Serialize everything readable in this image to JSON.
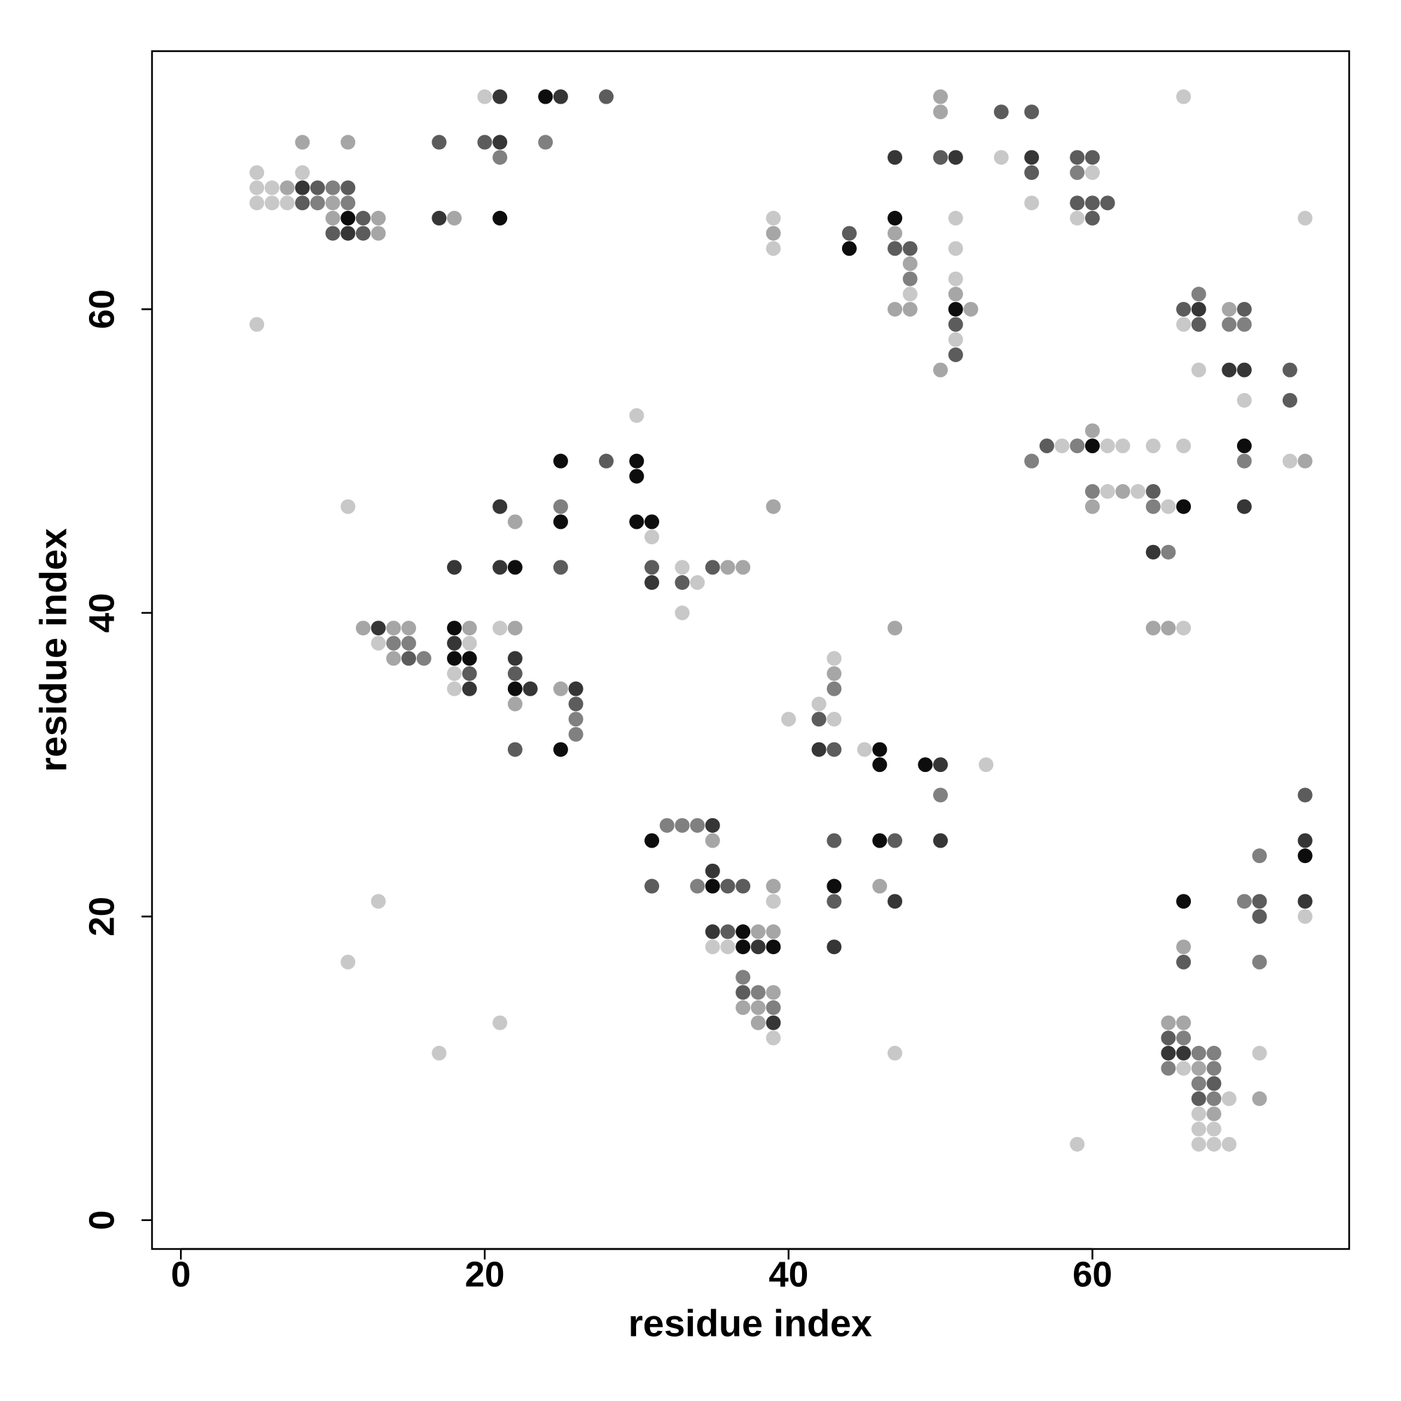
{
  "chart_data": {
    "type": "scatter",
    "xlabel": "residue index",
    "ylabel": "residue index",
    "xlim": [
      -1.9,
      76.9
    ],
    "ylim": [
      -1.9,
      77
    ],
    "xticks": [
      0,
      20,
      40,
      60
    ],
    "yticks": [
      0,
      20,
      40,
      60
    ],
    "x": [
      20,
      21,
      24,
      25,
      28,
      50,
      66,
      54,
      56,
      50,
      8,
      11,
      17,
      20,
      21,
      24,
      21,
      47,
      50,
      51,
      54,
      56,
      59,
      60,
      5,
      8,
      56,
      59,
      60,
      5,
      6,
      7,
      8,
      9,
      10,
      11,
      5,
      6,
      7,
      8,
      9,
      10,
      11,
      56,
      59,
      60,
      61,
      10,
      11,
      12,
      13,
      17,
      18,
      21,
      39,
      47,
      51,
      59,
      60,
      74,
      10,
      11,
      12,
      13,
      39,
      44,
      47,
      39,
      44,
      47,
      48,
      51,
      48,
      48,
      51,
      48,
      51,
      67,
      47,
      48,
      51,
      52,
      66,
      67,
      69,
      70,
      5,
      51,
      66,
      67,
      69,
      70,
      51,
      51,
      50,
      67,
      69,
      70,
      73,
      70,
      73,
      30,
      60,
      57,
      58,
      59,
      60,
      61,
      62,
      64,
      66,
      70,
      25,
      28,
      30,
      56,
      70,
      73,
      74,
      30,
      60,
      61,
      62,
      63,
      64,
      11,
      21,
      25,
      39,
      60,
      64,
      65,
      66,
      70,
      22,
      25,
      30,
      31,
      31,
      64,
      65,
      18,
      21,
      22,
      25,
      31,
      33,
      35,
      36,
      37,
      31,
      33,
      34,
      33,
      12,
      13,
      14,
      15,
      18,
      19,
      21,
      22,
      47,
      64,
      65,
      66,
      13,
      14,
      15,
      18,
      19,
      14,
      15,
      16,
      18,
      19,
      22,
      43,
      18,
      19,
      22,
      43,
      18,
      19,
      22,
      23,
      25,
      26,
      43,
      22,
      26,
      42,
      26,
      40,
      42,
      43,
      26,
      22,
      25,
      42,
      43,
      45,
      46,
      46,
      49,
      50,
      53,
      50,
      74,
      32,
      33,
      34,
      35,
      31,
      35,
      43,
      46,
      47,
      50,
      74,
      71,
      74,
      35,
      31,
      34,
      35,
      36,
      37,
      39,
      43,
      46,
      13,
      39,
      43,
      47,
      66,
      70,
      71,
      74,
      71,
      74,
      35,
      36,
      37,
      38,
      39,
      35,
      36,
      37,
      38,
      39,
      43,
      66,
      11,
      66,
      71,
      37,
      37,
      38,
      39,
      37,
      38,
      39,
      21,
      38,
      39,
      65,
      66,
      39,
      65,
      66,
      17,
      47,
      65,
      66,
      67,
      68,
      71,
      65,
      66,
      67,
      68,
      67,
      68,
      67,
      68,
      69,
      71,
      67,
      68,
      67,
      68,
      59,
      67,
      68,
      69
    ],
    "values": [
      74,
      74,
      74,
      74,
      74,
      74,
      74,
      73,
      73,
      73,
      71,
      71,
      71,
      71,
      71,
      71,
      70,
      70,
      70,
      70,
      70,
      70,
      70,
      70,
      69,
      69,
      69,
      69,
      69,
      68,
      68,
      68,
      68,
      68,
      68,
      68,
      67,
      67,
      67,
      67,
      67,
      67,
      67,
      67,
      67,
      67,
      67,
      66,
      66,
      66,
      66,
      66,
      66,
      66,
      66,
      66,
      66,
      66,
      66,
      66,
      65,
      65,
      65,
      65,
      65,
      65,
      65,
      64,
      64,
      64,
      64,
      64,
      63,
      62,
      62,
      61,
      61,
      61,
      60,
      60,
      60,
      60,
      60,
      60,
      60,
      60,
      59,
      59,
      59,
      59,
      59,
      59,
      58,
      57,
      56,
      56,
      56,
      56,
      56,
      54,
      54,
      53,
      52,
      51,
      51,
      51,
      51,
      51,
      51,
      51,
      51,
      51,
      50,
      50,
      50,
      50,
      50,
      50,
      50,
      49,
      48,
      48,
      48,
      48,
      48,
      47,
      47,
      47,
      47,
      47,
      47,
      47,
      47,
      47,
      46,
      46,
      46,
      46,
      45,
      44,
      44,
      43,
      43,
      43,
      43,
      43,
      43,
      43,
      43,
      43,
      42,
      42,
      42,
      40,
      39,
      39,
      39,
      39,
      39,
      39,
      39,
      39,
      39,
      39,
      39,
      39,
      38,
      38,
      38,
      38,
      38,
      37,
      37,
      37,
      37,
      37,
      37,
      37,
      36,
      36,
      36,
      36,
      35,
      35,
      35,
      35,
      35,
      35,
      35,
      34,
      34,
      34,
      33,
      33,
      33,
      33,
      32,
      31,
      31,
      31,
      31,
      31,
      31,
      30,
      30,
      30,
      30,
      28,
      28,
      26,
      26,
      26,
      26,
      25,
      25,
      25,
      25,
      25,
      25,
      25,
      24,
      24,
      23,
      22,
      22,
      22,
      22,
      22,
      22,
      22,
      22,
      21,
      21,
      21,
      21,
      21,
      21,
      21,
      21,
      20,
      20,
      19,
      19,
      19,
      19,
      19,
      18,
      18,
      18,
      18,
      18,
      18,
      18,
      17,
      17,
      17,
      16,
      15,
      15,
      15,
      14,
      14,
      14,
      13,
      13,
      13,
      13,
      13,
      12,
      12,
      12,
      11,
      11,
      11,
      11,
      11,
      11,
      11,
      10,
      10,
      10,
      10,
      9,
      9,
      8,
      8,
      8,
      8,
      7,
      7,
      6,
      6,
      5,
      5,
      5,
      5
    ],
    "colors": [
      "#c8c8c8",
      "#363636",
      "#0d0d0d",
      "#363636",
      "#5c5c5c",
      "#a6a6a6",
      "#c8c8c8",
      "#5c5c5c",
      "#5c5c5c",
      "#a6a6a6",
      "#a6a6a6",
      "#a6a6a6",
      "#5c5c5c",
      "#5c5c5c",
      "#363636",
      "#808080",
      "#808080",
      "#363636",
      "#5c5c5c",
      "#363636",
      "#c8c8c8",
      "#363636",
      "#5c5c5c",
      "#5c5c5c",
      "#c8c8c8",
      "#c8c8c8",
      "#5c5c5c",
      "#808080",
      "#c8c8c8",
      "#c8c8c8",
      "#c8c8c8",
      "#a6a6a6",
      "#363636",
      "#5c5c5c",
      "#808080",
      "#5c5c5c",
      "#c8c8c8",
      "#c8c8c8",
      "#c8c8c8",
      "#5c5c5c",
      "#808080",
      "#a6a6a6",
      "#808080",
      "#c8c8c8",
      "#5c5c5c",
      "#5c5c5c",
      "#5c5c5c",
      "#a6a6a6",
      "#0d0d0d",
      "#5c5c5c",
      "#a6a6a6",
      "#363636",
      "#a6a6a6",
      "#0d0d0d",
      "#c8c8c8",
      "#0d0d0d",
      "#c8c8c8",
      "#c8c8c8",
      "#5c5c5c",
      "#c8c8c8",
      "#5c5c5c",
      "#363636",
      "#5c5c5c",
      "#a6a6a6",
      "#a6a6a6",
      "#5c5c5c",
      "#a6a6a6",
      "#c8c8c8",
      "#0d0d0d",
      "#5c5c5c",
      "#5c5c5c",
      "#c8c8c8",
      "#a6a6a6",
      "#808080",
      "#c8c8c8",
      "#c8c8c8",
      "#a6a6a6",
      "#808080",
      "#a6a6a6",
      "#a6a6a6",
      "#0d0d0d",
      "#a6a6a6",
      "#5c5c5c",
      "#363636",
      "#a6a6a6",
      "#5c5c5c",
      "#c8c8c8",
      "#5c5c5c",
      "#c8c8c8",
      "#5c5c5c",
      "#808080",
      "#808080",
      "#c8c8c8",
      "#5c5c5c",
      "#a6a6a6",
      "#c8c8c8",
      "#363636",
      "#363636",
      "#5c5c5c",
      "#c8c8c8",
      "#5c5c5c",
      "#c8c8c8",
      "#a6a6a6",
      "#5c5c5c",
      "#c8c8c8",
      "#808080",
      "#0d0d0d",
      "#c8c8c8",
      "#c8c8c8",
      "#c8c8c8",
      "#c8c8c8",
      "#0d0d0d",
      "#0d0d0d",
      "#5c5c5c",
      "#0d0d0d",
      "#808080",
      "#808080",
      "#c8c8c8",
      "#a6a6a6",
      "#0d0d0d",
      "#808080",
      "#c8c8c8",
      "#a6a6a6",
      "#c8c8c8",
      "#5c5c5c",
      "#c8c8c8",
      "#363636",
      "#808080",
      "#a6a6a6",
      "#a6a6a6",
      "#808080",
      "#c8c8c8",
      "#0d0d0d",
      "#363636",
      "#a6a6a6",
      "#0d0d0d",
      "#0d0d0d",
      "#0d0d0d",
      "#c8c8c8",
      "#363636",
      "#808080",
      "#363636",
      "#363636",
      "#0d0d0d",
      "#5c5c5c",
      "#5c5c5c",
      "#c8c8c8",
      "#5c5c5c",
      "#a6a6a6",
      "#a6a6a6",
      "#363636",
      "#5c5c5c",
      "#c8c8c8",
      "#c8c8c8",
      "#a6a6a6",
      "#363636",
      "#a6a6a6",
      "#a6a6a6",
      "#0d0d0d",
      "#a6a6a6",
      "#c8c8c8",
      "#a6a6a6",
      "#a6a6a6",
      "#a6a6a6",
      "#a6a6a6",
      "#c8c8c8",
      "#c8c8c8",
      "#808080",
      "#808080",
      "#363636",
      "#c8c8c8",
      "#a6a6a6",
      "#5c5c5c",
      "#808080",
      "#0d0d0d",
      "#0d0d0d",
      "#363636",
      "#c8c8c8",
      "#c8c8c8",
      "#5c5c5c",
      "#5c5c5c",
      "#a6a6a6",
      "#c8c8c8",
      "#363636",
      "#0d0d0d",
      "#363636",
      "#a6a6a6",
      "#363636",
      "#808080",
      "#a6a6a6",
      "#5c5c5c",
      "#c8c8c8",
      "#808080",
      "#c8c8c8",
      "#5c5c5c",
      "#c8c8c8",
      "#808080",
      "#5c5c5c",
      "#0d0d0d",
      "#363636",
      "#5c5c5c",
      "#c8c8c8",
      "#0d0d0d",
      "#0d0d0d",
      "#0d0d0d",
      "#363636",
      "#c8c8c8",
      "#808080",
      "#5c5c5c",
      "#808080",
      "#808080",
      "#808080",
      "#363636",
      "#0d0d0d",
      "#a6a6a6",
      "#5c5c5c",
      "#0d0d0d",
      "#5c5c5c",
      "#363636",
      "#363636",
      "#808080",
      "#0d0d0d",
      "#363636",
      "#5c5c5c",
      "#808080",
      "#0d0d0d",
      "#5c5c5c",
      "#5c5c5c",
      "#a6a6a6",
      "#0d0d0d",
      "#a6a6a6",
      "#c8c8c8",
      "#c8c8c8",
      "#5c5c5c",
      "#363636",
      "#0d0d0d",
      "#808080",
      "#5c5c5c",
      "#363636",
      "#5c5c5c",
      "#c8c8c8",
      "#363636",
      "#5c5c5c",
      "#0d0d0d",
      "#a6a6a6",
      "#a6a6a6",
      "#c8c8c8",
      "#c8c8c8",
      "#0d0d0d",
      "#363636",
      "#0d0d0d",
      "#363636",
      "#a6a6a6",
      "#c8c8c8",
      "#5c5c5c",
      "#808080",
      "#808080",
      "#5c5c5c",
      "#808080",
      "#a6a6a6",
      "#a6a6a6",
      "#a6a6a6",
      "#808080",
      "#c8c8c8",
      "#a6a6a6",
      "#363636",
      "#a6a6a6",
      "#a6a6a6",
      "#c8c8c8",
      "#5c5c5c",
      "#808080",
      "#c8c8c8",
      "#c8c8c8",
      "#363636",
      "#363636",
      "#808080",
      "#808080",
      "#c8c8c8",
      "#808080",
      "#c8c8c8",
      "#a6a6a6",
      "#808080",
      "#808080",
      "#5c5c5c",
      "#5c5c5c",
      "#808080",
      "#c8c8c8",
      "#a6a6a6",
      "#c8c8c8",
      "#a6a6a6",
      "#c8c8c8",
      "#c8c8c8",
      "#c8c8c8",
      "#c8c8c8",
      "#c8c8c8",
      "#c8c8c8"
    ]
  }
}
